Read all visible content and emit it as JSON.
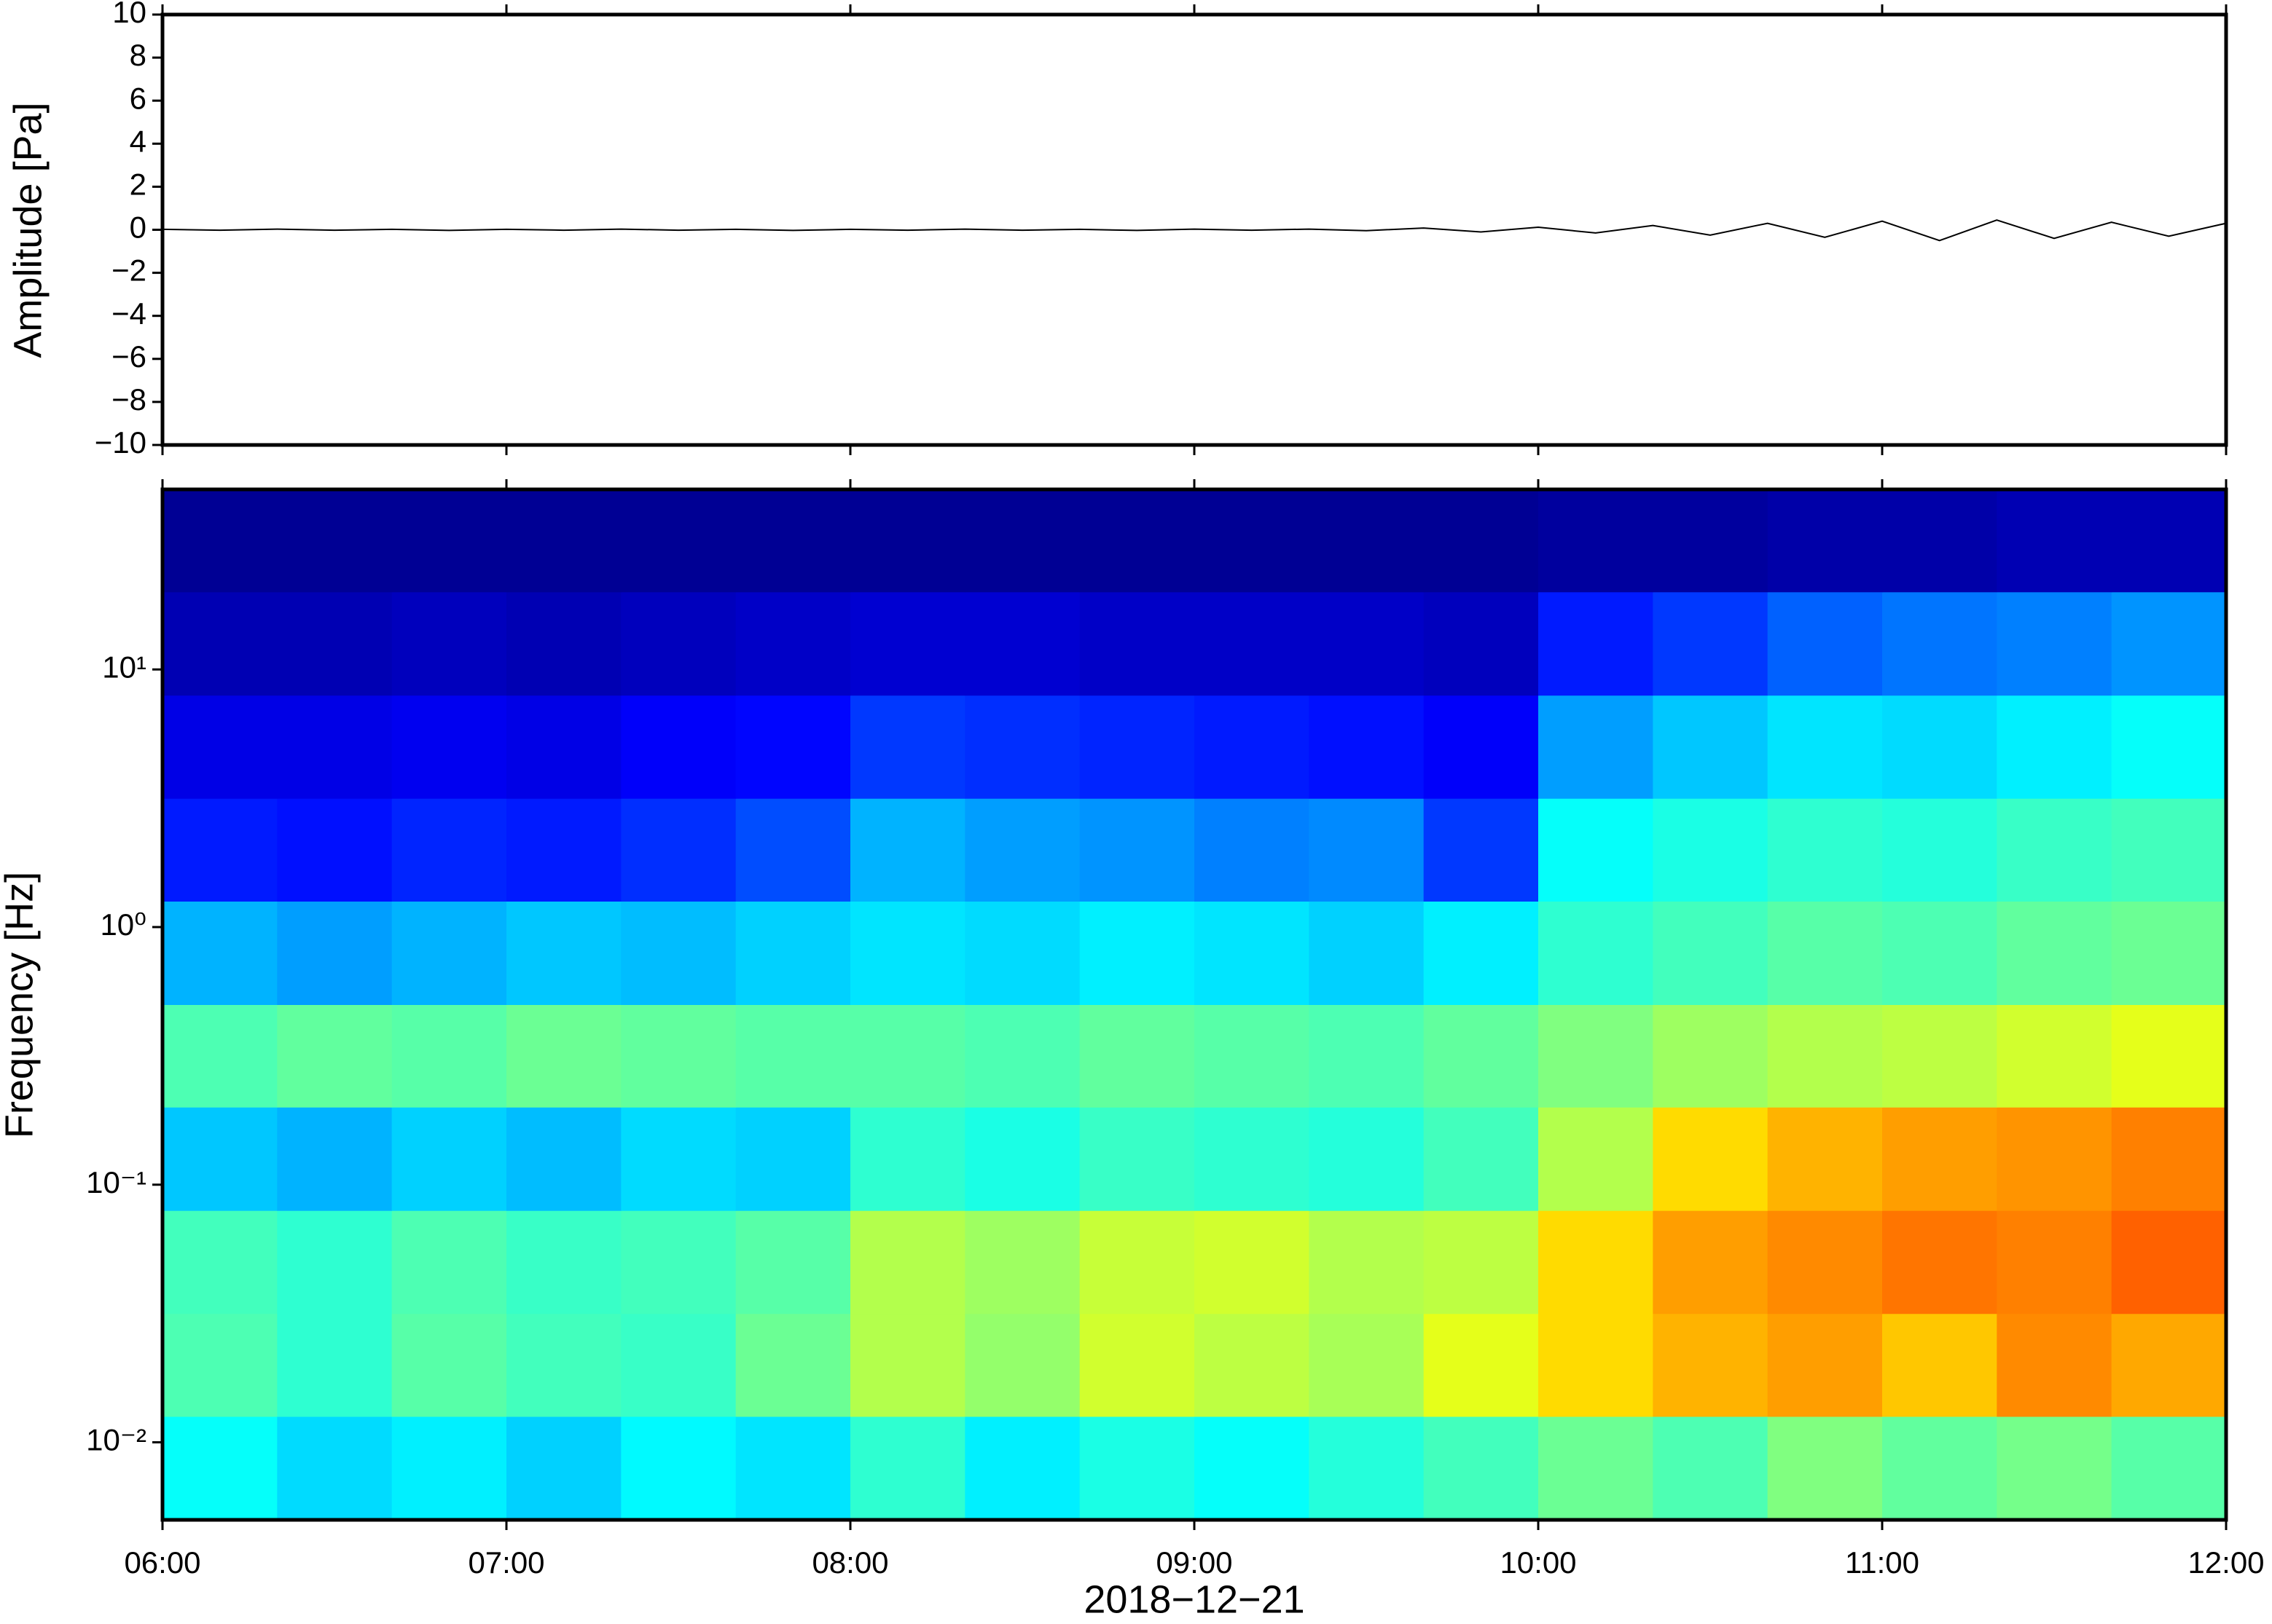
{
  "chart_data": [
    {
      "type": "line",
      "ylabel": "Amplitude [Pa]",
      "color": "#000000",
      "x": [
        360,
        370,
        380,
        390,
        400,
        410,
        420,
        430,
        440,
        450,
        460,
        470,
        480,
        490,
        500,
        510,
        520,
        530,
        540,
        550,
        560,
        570,
        580,
        590,
        600,
        610,
        620,
        630,
        640,
        650,
        660,
        670,
        680,
        690,
        700,
        710,
        720
      ],
      "values": [
        0.02,
        -0.02,
        0.03,
        -0.02,
        0.02,
        -0.03,
        0.02,
        -0.02,
        0.03,
        -0.02,
        0.02,
        -0.03,
        0.02,
        -0.02,
        0.03,
        -0.02,
        0.02,
        -0.03,
        0.03,
        -0.02,
        0.03,
        -0.04,
        0.08,
        -0.1,
        0.12,
        -0.15,
        0.2,
        -0.25,
        0.3,
        -0.35,
        0.4,
        -0.5,
        0.45,
        -0.4,
        0.35,
        -0.3,
        0.3
      ],
      "xlim": [
        360,
        720
      ],
      "xticks": [
        360,
        420,
        480,
        540,
        600,
        660,
        720
      ],
      "ylim": [
        -10,
        10
      ],
      "yticks": [
        {
          "value": -10,
          "label": "−10"
        },
        {
          "value": -8,
          "label": "−8"
        },
        {
          "value": -6,
          "label": "−6"
        },
        {
          "value": -4,
          "label": "−4"
        },
        {
          "value": -2,
          "label": "−2"
        },
        0,
        2,
        4,
        6,
        8,
        10
      ]
    },
    {
      "type": "heatmap",
      "ylabel": "Frequency [Hz]",
      "xlabel": "2018−12−21",
      "colormap": "jet",
      "log_y": true,
      "x_bins": [
        360,
        380,
        400,
        420,
        440,
        460,
        480,
        500,
        520,
        540,
        560,
        580,
        600,
        620,
        640,
        660,
        680,
        700,
        720
      ],
      "y_bins": [
        0.005,
        0.0126,
        0.0316,
        0.0794,
        0.2,
        0.5,
        1.26,
        3.16,
        7.94,
        20,
        50
      ],
      "z": [
        [
          0.38,
          0.34,
          0.36,
          0.33,
          0.37,
          0.35,
          0.42,
          0.36,
          0.4,
          0.38,
          0.41,
          0.44,
          0.48,
          0.45,
          0.5,
          0.47,
          0.49,
          0.46
        ],
        [
          0.45,
          0.42,
          0.46,
          0.44,
          0.43,
          0.48,
          0.55,
          0.52,
          0.58,
          0.56,
          0.54,
          0.6,
          0.66,
          0.7,
          0.72,
          0.68,
          0.74,
          0.71
        ],
        [
          0.44,
          0.42,
          0.45,
          0.43,
          0.44,
          0.46,
          0.55,
          0.53,
          0.57,
          0.58,
          0.55,
          0.56,
          0.66,
          0.72,
          0.74,
          0.76,
          0.75,
          0.78
        ],
        [
          0.32,
          0.3,
          0.33,
          0.31,
          0.34,
          0.33,
          0.42,
          0.4,
          0.43,
          0.42,
          0.41,
          0.44,
          0.55,
          0.66,
          0.7,
          0.72,
          0.73,
          0.75
        ],
        [
          0.45,
          0.47,
          0.46,
          0.48,
          0.47,
          0.46,
          0.46,
          0.45,
          0.47,
          0.46,
          0.45,
          0.47,
          0.5,
          0.53,
          0.55,
          0.56,
          0.58,
          0.6
        ],
        [
          0.3,
          0.28,
          0.3,
          0.32,
          0.31,
          0.33,
          0.35,
          0.34,
          0.36,
          0.35,
          0.33,
          0.36,
          0.42,
          0.44,
          0.46,
          0.45,
          0.47,
          0.48
        ],
        [
          0.15,
          0.14,
          0.16,
          0.15,
          0.17,
          0.2,
          0.3,
          0.28,
          0.27,
          0.25,
          0.26,
          0.18,
          0.38,
          0.4,
          0.42,
          0.41,
          0.43,
          0.44
        ],
        [
          0.1,
          0.1,
          0.11,
          0.1,
          0.12,
          0.13,
          0.18,
          0.17,
          0.16,
          0.15,
          0.14,
          0.12,
          0.28,
          0.32,
          0.35,
          0.34,
          0.36,
          0.38
        ],
        [
          0.05,
          0.05,
          0.06,
          0.05,
          0.06,
          0.07,
          0.08,
          0.08,
          0.07,
          0.07,
          0.07,
          0.06,
          0.15,
          0.18,
          0.22,
          0.24,
          0.25,
          0.27
        ],
        [
          0.02,
          0.02,
          0.02,
          0.02,
          0.02,
          0.02,
          0.02,
          0.02,
          0.02,
          0.02,
          0.02,
          0.02,
          0.03,
          0.03,
          0.04,
          0.04,
          0.05,
          0.05
        ]
      ],
      "xlim": [
        360,
        720
      ],
      "xticks": [
        {
          "value": 360,
          "label": "06:00"
        },
        {
          "value": 420,
          "label": "07:00"
        },
        {
          "value": 480,
          "label": "08:00"
        },
        {
          "value": 540,
          "label": "09:00"
        },
        {
          "value": 600,
          "label": "10:00"
        },
        {
          "value": 660,
          "label": "11:00"
        },
        {
          "value": 720,
          "label": "12:00"
        }
      ],
      "ylim": [
        0.005,
        50
      ],
      "yticks": [
        {
          "value": 0.01,
          "label": "10⁻²"
        },
        {
          "value": 0.1,
          "label": "10⁻¹"
        },
        {
          "value": 1,
          "label": "10⁰"
        },
        {
          "value": 10,
          "label": "10¹"
        }
      ]
    }
  ]
}
